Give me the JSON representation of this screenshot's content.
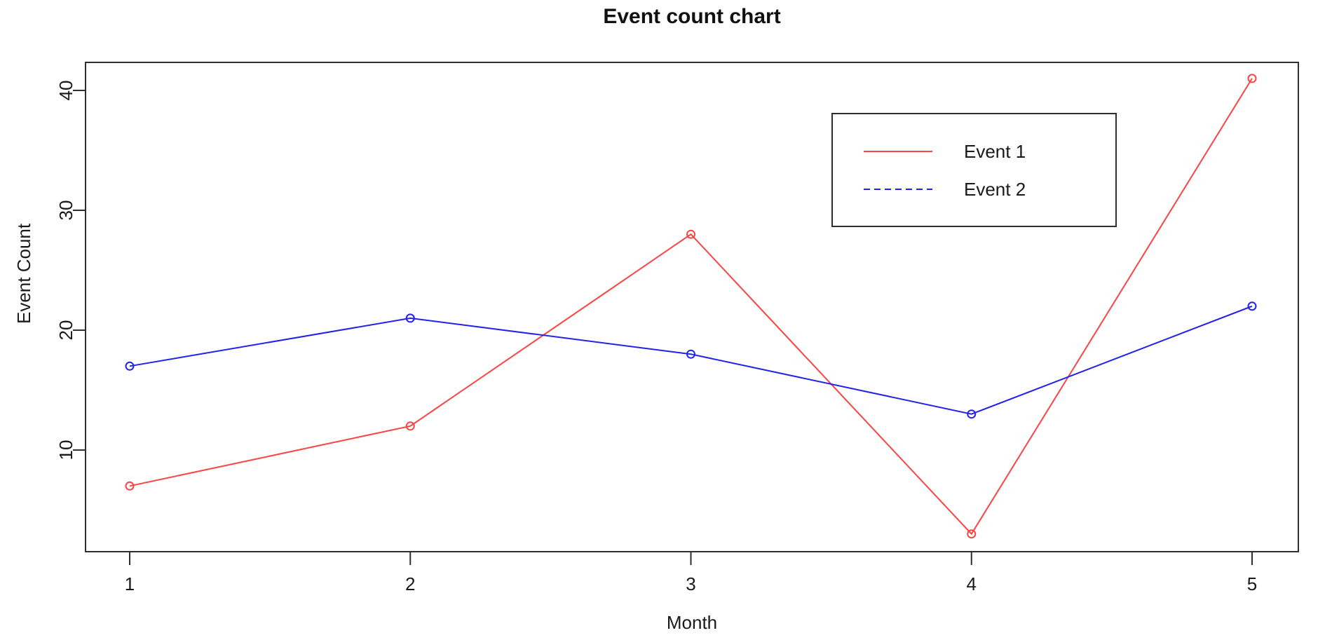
{
  "chart_data": {
    "type": "line",
    "title": "Event count chart",
    "xlabel": "Month",
    "ylabel": "Event Count",
    "x": [
      1,
      2,
      3,
      4,
      5
    ],
    "x_ticks": [
      "1",
      "2",
      "3",
      "4",
      "5"
    ],
    "y_ticks": [
      "10",
      "20",
      "30",
      "40"
    ],
    "xlim": [
      1,
      5
    ],
    "ylim": [
      10,
      40
    ],
    "grid": false,
    "axis_color": "#2e2e2e",
    "text_color": "#1a1a1a",
    "series": [
      {
        "name": "Event 1",
        "color": "#fb4444",
        "values": [
          7,
          12,
          28,
          3,
          41
        ],
        "plot_line_style": "solid",
        "legend_line_style": "solid",
        "marker": "open-circle"
      },
      {
        "name": "Event 2",
        "color": "#2222ee",
        "values": [
          17,
          21,
          18,
          13,
          22
        ],
        "plot_line_style": "solid",
        "legend_line_style": "dashed",
        "marker": "open-circle"
      }
    ],
    "legend": {
      "position": "top-right",
      "entries": [
        "Event 1",
        "Event 2"
      ]
    }
  }
}
